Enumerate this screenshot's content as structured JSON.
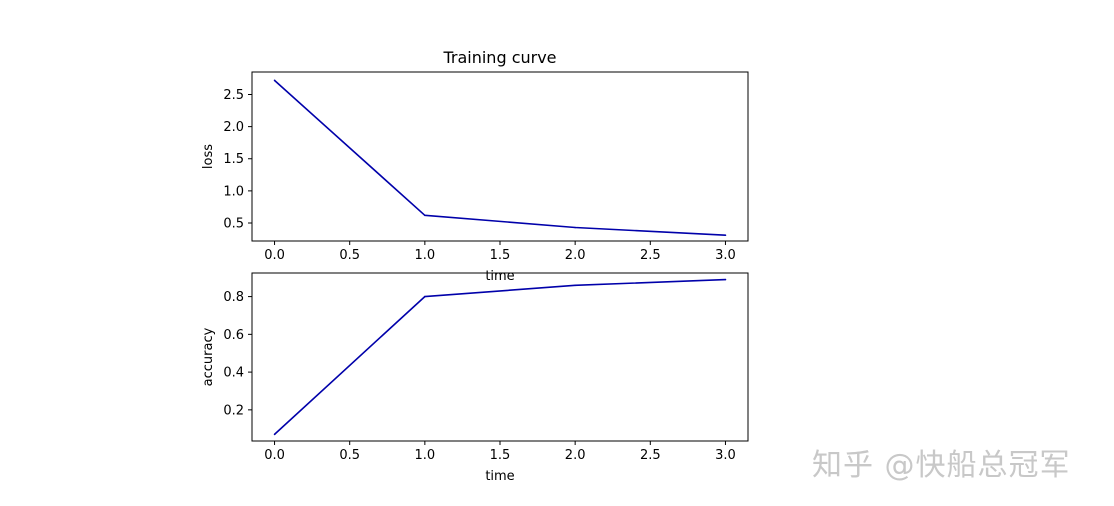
{
  "watermark": "知乎 @快船总冠军",
  "colors": {
    "line": "#0000aa",
    "axes": "#000000",
    "text": "#000000",
    "background": "#ffffff",
    "watermark": "#c8c8c8"
  },
  "chart_data": [
    {
      "type": "line",
      "title": "Training curve",
      "xlabel": "time",
      "ylabel": "loss",
      "x": [
        0,
        1,
        2,
        3
      ],
      "values": [
        2.72,
        0.62,
        0.43,
        0.31
      ],
      "xlim": [
        -0.15,
        3.15
      ],
      "ylim": [
        0.22,
        2.85
      ],
      "xticks": [
        0,
        0.5,
        1,
        1.5,
        2,
        2.5,
        3
      ],
      "xtick_labels": [
        "0.0",
        "0.5",
        "1.0",
        "1.5",
        "2.0",
        "2.5",
        "3.0"
      ],
      "yticks": [
        0.5,
        1.0,
        1.5,
        2.0,
        2.5
      ],
      "ytick_labels": [
        "0.5",
        "1.0",
        "1.5",
        "2.0",
        "2.5"
      ],
      "grid": false
    },
    {
      "type": "line",
      "title": "",
      "xlabel": "time",
      "ylabel": "accuracy",
      "x": [
        0,
        1,
        2,
        3
      ],
      "values": [
        0.07,
        0.8,
        0.86,
        0.89
      ],
      "xlim": [
        -0.15,
        3.15
      ],
      "ylim": [
        0.035,
        0.925
      ],
      "xticks": [
        0,
        0.5,
        1,
        1.5,
        2,
        2.5,
        3
      ],
      "xtick_labels": [
        "0.0",
        "0.5",
        "1.0",
        "1.5",
        "2.0",
        "2.5",
        "3.0"
      ],
      "yticks": [
        0.2,
        0.4,
        0.6,
        0.8
      ],
      "ytick_labels": [
        "0.2",
        "0.4",
        "0.6",
        "0.8"
      ],
      "grid": false
    }
  ]
}
